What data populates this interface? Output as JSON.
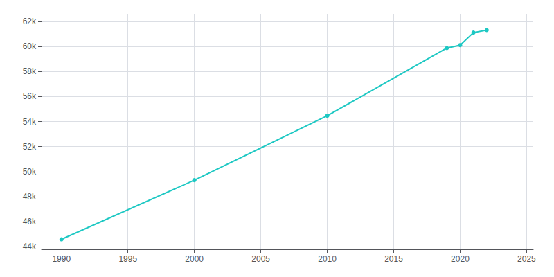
{
  "chart_data": {
    "type": "line",
    "x": [
      1990,
      2000,
      2010,
      2019,
      2020,
      2021,
      2022
    ],
    "values": [
      44600,
      49322,
      54462,
      59864,
      60100,
      61100,
      61300
    ],
    "color": "#1DC8C3",
    "marker": "circle",
    "xlim": [
      1988.5,
      2025.5
    ],
    "xticks": [
      1990,
      1995,
      2000,
      2005,
      2010,
      2015,
      2020,
      2025
    ],
    "ylim": [
      43800,
      62600
    ],
    "yticks": [
      {
        "value": 44000,
        "label": "44k"
      },
      {
        "value": 46000,
        "label": "46k"
      },
      {
        "value": 48000,
        "label": "48k"
      },
      {
        "value": 50000,
        "label": "50k"
      },
      {
        "value": 52000,
        "label": "52k"
      },
      {
        "value": 54000,
        "label": "54k"
      },
      {
        "value": 56000,
        "label": "56k"
      },
      {
        "value": 58000,
        "label": "58k"
      },
      {
        "value": 60000,
        "label": "60k"
      },
      {
        "value": 62000,
        "label": "62k"
      }
    ],
    "grid": true
  }
}
